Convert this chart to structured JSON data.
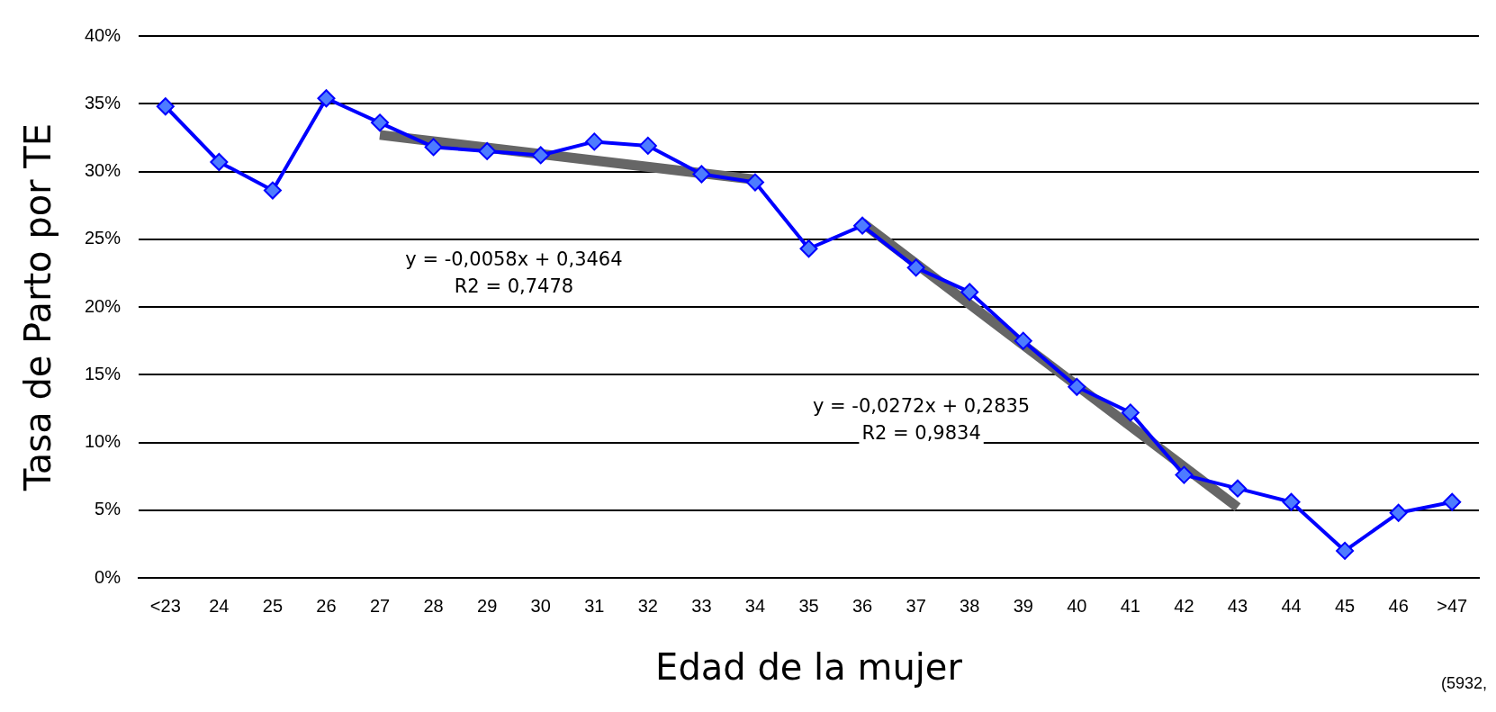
{
  "chart_data": {
    "type": "line",
    "xlabel": "Edad de la mujer",
    "ylabel": "Tasa de Parto por TE",
    "categories": [
      "<23",
      "24",
      "25",
      "26",
      "27",
      "28",
      "29",
      "30",
      "31",
      "32",
      "33",
      "34",
      "35",
      "36",
      "37",
      "38",
      "39",
      "40",
      "41",
      "42",
      "43",
      "44",
      "45",
      "46",
      ">47"
    ],
    "series": [
      {
        "color": "#0000ff",
        "marker": "diamond",
        "values": [
          34.8,
          30.7,
          28.6,
          35.4,
          33.6,
          31.8,
          31.5,
          31.2,
          32.2,
          31.9,
          29.8,
          29.2,
          24.3,
          26.0,
          22.9,
          21.1,
          17.5,
          14.1,
          12.2,
          7.6,
          6.6,
          5.6,
          2.0,
          4.8,
          5.6
        ]
      },
      {
        "color": "#666666",
        "marker": "none",
        "values": [
          null,
          null,
          null,
          null,
          32.7,
          null,
          null,
          null,
          null,
          null,
          null,
          29.4,
          null,
          null,
          null,
          null,
          null,
          null,
          null,
          null,
          null,
          null,
          null,
          null,
          null
        ]
      },
      {
        "color": "#666666",
        "marker": "none",
        "values": [
          null,
          null,
          null,
          null,
          null,
          null,
          null,
          null,
          null,
          null,
          null,
          null,
          null,
          26.2,
          null,
          null,
          null,
          null,
          null,
          null,
          5.2,
          null,
          null,
          null,
          null
        ]
      }
    ],
    "ylim": [
      0,
      40
    ],
    "yticks": [
      {
        "value": 0,
        "label": "0%"
      },
      {
        "value": 5,
        "label": "5%"
      },
      {
        "value": 10,
        "label": "10%"
      },
      {
        "value": 15,
        "label": "15%"
      },
      {
        "value": 20,
        "label": "20%"
      },
      {
        "value": 25,
        "label": "25%"
      },
      {
        "value": 30,
        "label": "30%"
      },
      {
        "value": 35,
        "label": "35%"
      },
      {
        "value": 40,
        "label": "40%"
      }
    ],
    "grid": "y",
    "legend": false,
    "annotations": [
      "y = -0,0058x + 0,3464",
      "R2 = 0,7478",
      "y = -0,0272x + 0,2835",
      "R2 = 0,9834",
      "(5932,"
    ]
  }
}
